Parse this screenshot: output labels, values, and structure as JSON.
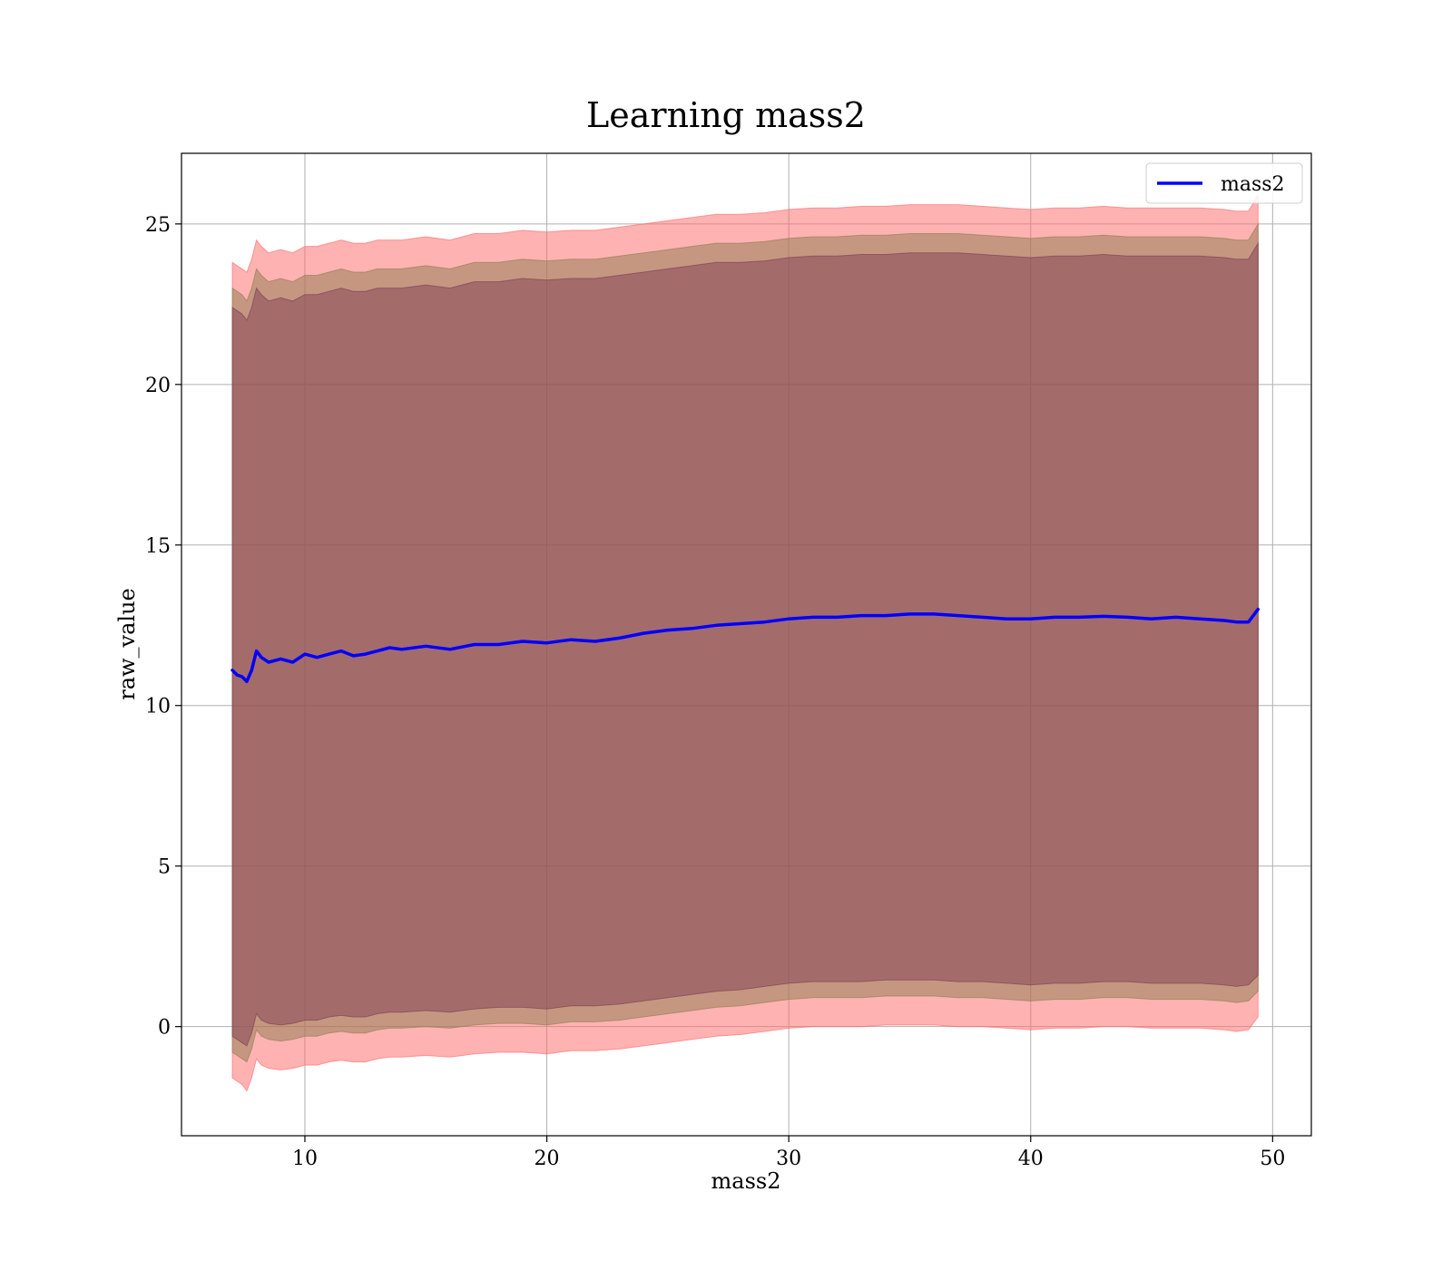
{
  "chart_data": {
    "type": "line",
    "title": "Learning mass2",
    "xlabel": "mass2",
    "ylabel": "raw_value",
    "xlim": [
      4.9,
      51.6
    ],
    "ylim": [
      -3.4,
      27.2
    ],
    "xticks": [
      10,
      20,
      30,
      40,
      50
    ],
    "yticks": [
      0,
      5,
      10,
      15,
      20,
      25
    ],
    "xtick_labels": [
      "10",
      "20",
      "30",
      "40",
      "50"
    ],
    "ytick_labels": [
      "0",
      "5",
      "10",
      "15",
      "20",
      "25"
    ],
    "grid": true,
    "legend": {
      "position": "top-right",
      "entries": [
        "mass2"
      ]
    },
    "series": [
      {
        "name": "mass2",
        "color": "#0000ff",
        "x": [
          7.0,
          7.2,
          7.4,
          7.6,
          7.8,
          8.0,
          8.2,
          8.5,
          9.0,
          9.5,
          10.0,
          10.5,
          11.0,
          11.5,
          12.0,
          12.5,
          13.0,
          13.5,
          14.0,
          15.0,
          16.0,
          17.0,
          18.0,
          19.0,
          20.0,
          21.0,
          22.0,
          23.0,
          24.0,
          25.0,
          26.0,
          27.0,
          28.0,
          29.0,
          30.0,
          31.0,
          32.0,
          33.0,
          34.0,
          35.0,
          36.0,
          37.0,
          38.0,
          39.0,
          40.0,
          41.0,
          42.0,
          43.0,
          44.0,
          45.0,
          46.0,
          47.0,
          48.0,
          48.5,
          49.0,
          49.4
        ],
        "y": [
          11.1,
          10.95,
          10.9,
          10.75,
          11.1,
          11.7,
          11.5,
          11.35,
          11.45,
          11.35,
          11.6,
          11.5,
          11.6,
          11.7,
          11.55,
          11.6,
          11.7,
          11.8,
          11.75,
          11.85,
          11.75,
          11.9,
          11.9,
          12.0,
          11.95,
          12.05,
          12.0,
          12.1,
          12.25,
          12.35,
          12.4,
          12.5,
          12.55,
          12.6,
          12.7,
          12.75,
          12.75,
          12.8,
          12.8,
          12.85,
          12.85,
          12.8,
          12.75,
          12.7,
          12.7,
          12.75,
          12.75,
          12.78,
          12.75,
          12.7,
          12.75,
          12.7,
          12.65,
          12.6,
          12.6,
          13.0
        ],
        "bands": [
          {
            "color": "#ff6666",
            "opacity": 0.5,
            "upper": [
              23.8,
              23.7,
              23.6,
              23.5,
              23.9,
              24.5,
              24.3,
              24.1,
              24.2,
              24.1,
              24.3,
              24.3,
              24.4,
              24.5,
              24.4,
              24.4,
              24.5,
              24.5,
              24.5,
              24.6,
              24.5,
              24.7,
              24.7,
              24.8,
              24.75,
              24.8,
              24.8,
              24.9,
              25.0,
              25.1,
              25.2,
              25.3,
              25.3,
              25.35,
              25.45,
              25.5,
              25.5,
              25.55,
              25.55,
              25.6,
              25.6,
              25.6,
              25.55,
              25.5,
              25.45,
              25.5,
              25.5,
              25.55,
              25.5,
              25.5,
              25.5,
              25.5,
              25.45,
              25.4,
              25.4,
              25.9
            ],
            "lower": [
              -1.6,
              -1.7,
              -1.8,
              -2.0,
              -1.6,
              -1.0,
              -1.2,
              -1.3,
              -1.35,
              -1.3,
              -1.2,
              -1.2,
              -1.1,
              -1.05,
              -1.1,
              -1.1,
              -1.0,
              -0.95,
              -0.95,
              -0.9,
              -0.95,
              -0.85,
              -0.8,
              -0.8,
              -0.85,
              -0.75,
              -0.75,
              -0.7,
              -0.6,
              -0.5,
              -0.4,
              -0.3,
              -0.25,
              -0.15,
              -0.05,
              0.0,
              0.0,
              0.0,
              0.05,
              0.05,
              0.05,
              0.0,
              0.0,
              -0.05,
              -0.1,
              -0.05,
              -0.05,
              0.0,
              0.0,
              -0.05,
              -0.05,
              -0.05,
              -0.1,
              -0.15,
              -0.1,
              0.3
            ]
          },
          {
            "color": "#8c7c4f",
            "opacity": 0.5,
            "upper": [
              23.0,
              22.9,
              22.8,
              22.6,
              23.0,
              23.6,
              23.4,
              23.2,
              23.3,
              23.2,
              23.4,
              23.4,
              23.5,
              23.6,
              23.5,
              23.5,
              23.6,
              23.6,
              23.6,
              23.7,
              23.6,
              23.8,
              23.8,
              23.9,
              23.85,
              23.9,
              23.9,
              24.0,
              24.1,
              24.2,
              24.3,
              24.4,
              24.4,
              24.45,
              24.55,
              24.6,
              24.6,
              24.65,
              24.65,
              24.7,
              24.7,
              24.7,
              24.65,
              24.6,
              24.55,
              24.6,
              24.6,
              24.65,
              24.6,
              24.6,
              24.6,
              24.6,
              24.55,
              24.5,
              24.5,
              25.0
            ],
            "lower": [
              -0.8,
              -0.9,
              -1.0,
              -1.1,
              -0.7,
              -0.1,
              -0.3,
              -0.4,
              -0.45,
              -0.4,
              -0.3,
              -0.3,
              -0.2,
              -0.15,
              -0.2,
              -0.2,
              -0.1,
              -0.05,
              -0.05,
              0.0,
              -0.05,
              0.05,
              0.1,
              0.1,
              0.05,
              0.15,
              0.15,
              0.2,
              0.3,
              0.4,
              0.5,
              0.6,
              0.65,
              0.75,
              0.85,
              0.9,
              0.9,
              0.9,
              0.95,
              0.95,
              0.95,
              0.9,
              0.9,
              0.85,
              0.8,
              0.85,
              0.85,
              0.9,
              0.9,
              0.85,
              0.85,
              0.85,
              0.8,
              0.75,
              0.8,
              1.1
            ]
          },
          {
            "color": "#7a3850",
            "opacity": 0.45,
            "upper": [
              22.4,
              22.3,
              22.2,
              22.0,
              22.4,
              23.0,
              22.8,
              22.6,
              22.7,
              22.6,
              22.8,
              22.8,
              22.9,
              23.0,
              22.9,
              22.9,
              23.0,
              23.0,
              23.0,
              23.1,
              23.0,
              23.2,
              23.2,
              23.3,
              23.25,
              23.3,
              23.3,
              23.4,
              23.5,
              23.6,
              23.7,
              23.8,
              23.8,
              23.85,
              23.95,
              24.0,
              24.0,
              24.05,
              24.05,
              24.1,
              24.1,
              24.1,
              24.05,
              24.0,
              23.95,
              24.0,
              24.0,
              24.05,
              24.0,
              24.0,
              24.0,
              24.0,
              23.95,
              23.9,
              23.9,
              24.4
            ],
            "lower": [
              -0.3,
              -0.4,
              -0.5,
              -0.6,
              -0.2,
              0.4,
              0.2,
              0.1,
              0.05,
              0.1,
              0.2,
              0.2,
              0.3,
              0.35,
              0.3,
              0.3,
              0.4,
              0.45,
              0.45,
              0.5,
              0.45,
              0.55,
              0.6,
              0.6,
              0.55,
              0.65,
              0.65,
              0.7,
              0.8,
              0.9,
              1.0,
              1.1,
              1.15,
              1.25,
              1.35,
              1.4,
              1.4,
              1.4,
              1.45,
              1.45,
              1.45,
              1.4,
              1.4,
              1.35,
              1.3,
              1.35,
              1.35,
              1.4,
              1.4,
              1.35,
              1.35,
              1.35,
              1.3,
              1.25,
              1.3,
              1.6
            ]
          }
        ]
      }
    ]
  }
}
